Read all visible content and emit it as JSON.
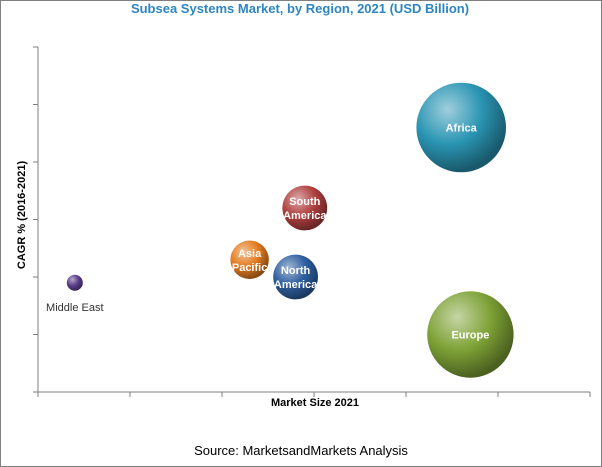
{
  "chart_data": {
    "type": "scatter",
    "title": "Subsea Systems Market, by Region, 2021 (USD Billion)",
    "xlabel": "Market Size 2021",
    "ylabel": "CAGR % (2016-2021)",
    "x_ticks_labeled": false,
    "y_ticks_labeled": false,
    "grid": false,
    "legend": "none",
    "xlim": [
      0,
      6
    ],
    "ylim": [
      0,
      6
    ],
    "x_tick_count": 6,
    "y_tick_count": 6,
    "series": [
      {
        "name": "Middle East",
        "x": 0.4,
        "y": 1.9,
        "size": 0.25,
        "color": "#5b3d8a",
        "label_position": "below",
        "label_color": "#333333"
      },
      {
        "name": "Asia Pacific",
        "x": 2.3,
        "y": 2.3,
        "size": 0.6,
        "color": "#e37c20",
        "label_position": "inside",
        "label_color": "#ffffff"
      },
      {
        "name": "North America",
        "x": 2.8,
        "y": 2.0,
        "size": 0.7,
        "color": "#2e5fa0",
        "label_position": "inside",
        "label_color": "#ffffff"
      },
      {
        "name": "South America",
        "x": 2.9,
        "y": 3.2,
        "size": 0.7,
        "color": "#b0403f",
        "label_position": "inside",
        "label_color": "#ffffff"
      },
      {
        "name": "Africa",
        "x": 4.6,
        "y": 4.6,
        "size": 1.4,
        "color": "#2a95b3",
        "label_position": "inside",
        "label_color": "#ffffff"
      },
      {
        "name": "Europe",
        "x": 4.7,
        "y": 1.0,
        "size": 1.35,
        "color": "#7ea236",
        "label_position": "inside",
        "label_color": "#ffffff"
      }
    ]
  },
  "footer": {
    "source": "Source: MarketsandMarkets Analysis"
  },
  "colors": {
    "title": "#2e86c1",
    "axis": "#7f7f7f"
  }
}
